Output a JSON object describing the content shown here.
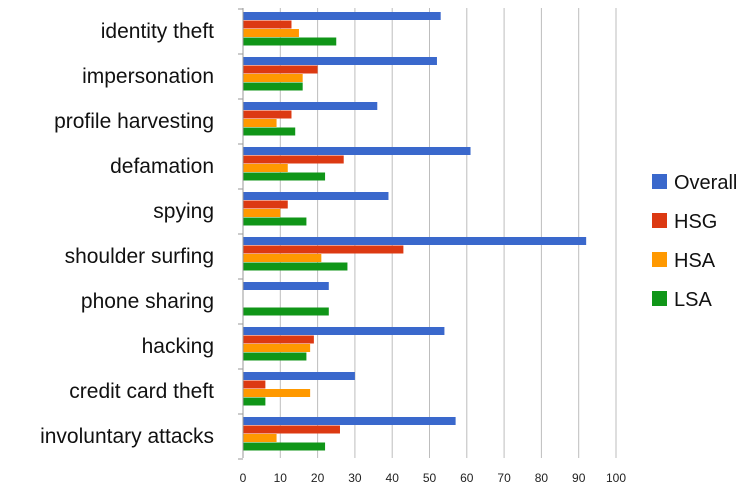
{
  "chart_data": {
    "type": "bar",
    "orientation": "horizontal",
    "title": "",
    "xlabel": "",
    "ylabel": "",
    "xlim": [
      0,
      100
    ],
    "x_ticks": [
      "0",
      "10",
      "20",
      "30",
      "40",
      "50",
      "60",
      "70",
      "80",
      "90",
      "100"
    ],
    "grid": "vertical",
    "legend_position": "right",
    "categories": [
      "identity theft",
      "impersonation",
      "profile harvesting",
      "defamation",
      "spying",
      "shoulder surfing",
      "phone sharing",
      "hacking",
      "credit card theft",
      "involuntary attacks"
    ],
    "series": [
      {
        "name": "Overall",
        "color": "#3a68cc",
        "values": [
          53,
          52,
          36,
          61,
          39,
          92,
          23,
          54,
          30,
          57
        ]
      },
      {
        "name": "HSG",
        "color": "#dc3912",
        "values": [
          13,
          20,
          13,
          27,
          12,
          43,
          0,
          19,
          6,
          26
        ]
      },
      {
        "name": "HSA",
        "color": "#ff9900",
        "values": [
          15,
          16,
          9,
          12,
          10,
          21,
          0,
          18,
          18,
          9
        ]
      },
      {
        "name": "LSA",
        "color": "#109618",
        "values": [
          25,
          16,
          14,
          22,
          17,
          28,
          23,
          17,
          6,
          22
        ]
      }
    ]
  }
}
